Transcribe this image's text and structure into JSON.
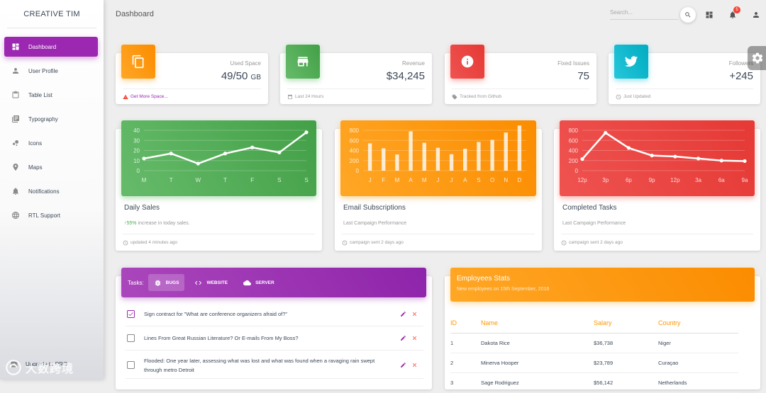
{
  "sidebar": {
    "brand": "CREATIVE TIM",
    "items": [
      {
        "label": "Dashboard",
        "icon": "dashboard-icon"
      },
      {
        "label": "User Profile",
        "icon": "person-icon"
      },
      {
        "label": "Table List",
        "icon": "clipboard-icon"
      },
      {
        "label": "Typography",
        "icon": "library-books-icon"
      },
      {
        "label": "Icons",
        "icon": "bubble-chart-icon"
      },
      {
        "label": "Maps",
        "icon": "location-pin-icon"
      },
      {
        "label": "Notifications",
        "icon": "bell-icon"
      },
      {
        "label": "RTL Support",
        "icon": "language-icon"
      }
    ],
    "upgrade_label": "Upgrade to PRO",
    "watermark_text": "大数跨境"
  },
  "header": {
    "title": "Dashboard",
    "search_placeholder": "Search...",
    "notification_count": "5"
  },
  "stats": [
    {
      "label": "Used Space",
      "value": "49/50",
      "unit": "GB",
      "footer": "Get More Space...",
      "color": "#fb8c00",
      "icon": "copy-icon",
      "footer_icon": "warning-icon"
    },
    {
      "label": "Revenue",
      "value": "$34,245",
      "footer": "Last 24 Hours",
      "color": "#43a047",
      "icon": "store-icon",
      "footer_icon": "calendar-icon"
    },
    {
      "label": "Fixed Issues",
      "value": "75",
      "footer": "Tracked from Github",
      "color": "#e53935",
      "icon": "info-icon",
      "footer_icon": "tag-icon"
    },
    {
      "label": "Followers",
      "value": "+245",
      "footer": "Just Updated",
      "color": "#00acc1",
      "icon": "twitter-icon",
      "footer_icon": "update-icon"
    }
  ],
  "charts": {
    "daily": {
      "title": "Daily Sales",
      "sub_pct": "55%",
      "sub_text": " increase in today sales.",
      "footer": "updated 4 minutes ago"
    },
    "email": {
      "title": "Email Subscriptions",
      "sub_text": "Last Campaign Performance",
      "footer": "campaign sent 2 days ago"
    },
    "tasks": {
      "title": "Completed Tasks",
      "sub_text": "Last Campaign Performance",
      "footer": "campaign sent 2 days ago"
    }
  },
  "chart_data": [
    {
      "type": "line",
      "categories": [
        "M",
        "T",
        "W",
        "T",
        "F",
        "S",
        "S"
      ],
      "values": [
        12,
        17,
        7,
        17,
        23,
        18,
        38
      ],
      "ylim": [
        0,
        40
      ],
      "yticks": [
        0,
        10,
        20,
        30,
        40
      ],
      "grid": true,
      "color": "#4caf50"
    },
    {
      "type": "bar",
      "categories": [
        "J",
        "F",
        "M",
        "A",
        "M",
        "J",
        "J",
        "A",
        "S",
        "O",
        "N",
        "D"
      ],
      "values": [
        542,
        443,
        320,
        780,
        553,
        453,
        326,
        434,
        568,
        610,
        756,
        895
      ],
      "ylim": [
        0,
        800
      ],
      "yticks": [
        0,
        200,
        400,
        600,
        800
      ],
      "grid": true,
      "color": "#ff9800"
    },
    {
      "type": "line",
      "categories": [
        "12p",
        "3p",
        "6p",
        "9p",
        "12p",
        "3a",
        "6a",
        "9a"
      ],
      "values": [
        230,
        750,
        450,
        300,
        280,
        240,
        200,
        190
      ],
      "ylim": [
        0,
        800
      ],
      "yticks": [
        0,
        200,
        400,
        600,
        800
      ],
      "grid": true,
      "color": "#f44336"
    }
  ],
  "tasks": {
    "label": "Tasks:",
    "tabs": [
      {
        "label": "BUGS",
        "icon": "bug-icon"
      },
      {
        "label": "WEBSITE",
        "icon": "code-icon"
      },
      {
        "label": "SERVER",
        "icon": "cloud-icon"
      }
    ],
    "rows": [
      {
        "text": "Sign contract for \"What are conference organizers afraid of?\"",
        "checked": true
      },
      {
        "text": "Lines From Great Russian Literature? Or E-mails From My Boss?",
        "checked": false
      },
      {
        "text": "Flooded: One year later, assessing what was lost and what was found when a ravaging rain swept through metro Detroit",
        "checked": false
      }
    ]
  },
  "employees": {
    "title": "Employees Stats",
    "subtitle": "New employees on 15th September, 2016",
    "columns": [
      "ID",
      "Name",
      "Salary",
      "Country"
    ],
    "rows": [
      [
        "1",
        "Dakota Rice",
        "$36,738",
        "Niger"
      ],
      [
        "2",
        "Minerva Hooper",
        "$23,789",
        "Curaçao"
      ],
      [
        "3",
        "Sage Rodriguez",
        "$56,142",
        "Netherlands"
      ]
    ]
  }
}
